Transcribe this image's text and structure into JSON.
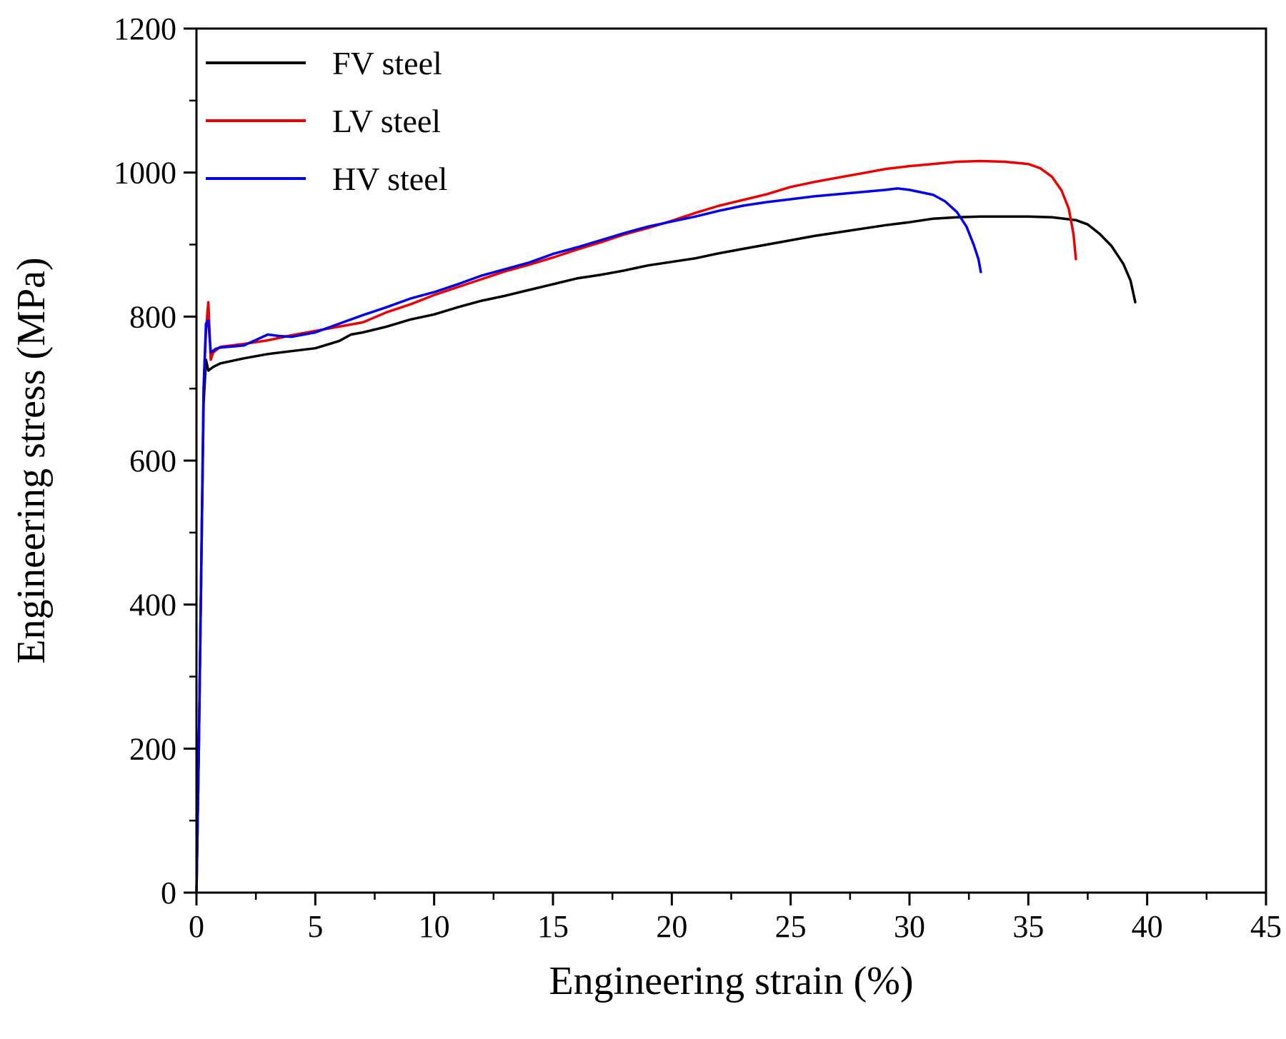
{
  "chart_data": {
    "type": "line",
    "title": "",
    "xlabel": "Engineering strain (%)",
    "ylabel": "Engineering stress (MPa)",
    "xlim": [
      0,
      45
    ],
    "ylim": [
      0,
      1200
    ],
    "x_ticks": [
      0,
      5,
      10,
      15,
      20,
      25,
      30,
      35,
      40,
      45
    ],
    "y_ticks": [
      0,
      200,
      400,
      600,
      800,
      1000,
      1200
    ],
    "x_tick_labels": [
      "0",
      "5",
      "10",
      "15",
      "20",
      "25",
      "30",
      "35",
      "40",
      "45"
    ],
    "y_tick_labels": [
      "0",
      "200",
      "400",
      "600",
      "800",
      "1000",
      "1200"
    ],
    "grid": false,
    "legend_position": "top-left",
    "series": [
      {
        "name": "FV steel",
        "color": "#000000",
        "x": [
          0,
          0.1,
          0.2,
          0.3,
          0.4,
          0.5,
          0.7,
          1.0,
          2.0,
          3.0,
          4.0,
          5.0,
          6.0,
          6.5,
          7.0,
          8.0,
          9.0,
          10.0,
          11.0,
          12.0,
          13.0,
          14.0,
          15.0,
          16.0,
          17.0,
          18.0,
          19.0,
          20.0,
          21.0,
          22.0,
          23.0,
          24.0,
          25.0,
          26.0,
          27.0,
          28.0,
          29.0,
          30.0,
          31.0,
          32.0,
          33.0,
          34.0,
          35.0,
          36.0,
          37.0,
          37.5,
          38.0,
          38.5,
          39.0,
          39.3,
          39.5
        ],
        "values": [
          0,
          200,
          450,
          680,
          740,
          725,
          730,
          735,
          742,
          748,
          752,
          756,
          766,
          775,
          778,
          786,
          796,
          803,
          813,
          822,
          829,
          837,
          845,
          853,
          858,
          864,
          871,
          876,
          881,
          888,
          894,
          900,
          906,
          912,
          917,
          922,
          927,
          931,
          936,
          938,
          939,
          939,
          939,
          938,
          934,
          928,
          915,
          898,
          873,
          850,
          820
        ]
      },
      {
        "name": "LV steel",
        "color": "#ee0000",
        "x": [
          0,
          0.1,
          0.2,
          0.3,
          0.4,
          0.5,
          0.6,
          0.7,
          1.0,
          2.0,
          3.0,
          4.0,
          5.0,
          6.0,
          7.0,
          8.0,
          9.0,
          10.0,
          11.0,
          12.0,
          13.0,
          14.0,
          15.0,
          16.0,
          17.0,
          18.0,
          19.0,
          20.0,
          21.0,
          22.0,
          23.0,
          24.0,
          25.0,
          26.0,
          27.0,
          28.0,
          29.0,
          30.0,
          31.0,
          32.0,
          33.0,
          34.0,
          35.0,
          35.5,
          36.0,
          36.4,
          36.7,
          36.9,
          37.0
        ],
        "values": [
          0,
          200,
          450,
          700,
          780,
          820,
          740,
          750,
          758,
          762,
          767,
          774,
          780,
          786,
          792,
          806,
          817,
          830,
          841,
          852,
          863,
          872,
          882,
          893,
          903,
          914,
          923,
          933,
          944,
          954,
          962,
          970,
          980,
          987,
          993,
          999,
          1005,
          1009,
          1012,
          1015,
          1016,
          1015,
          1012,
          1006,
          994,
          975,
          950,
          915,
          880
        ]
      },
      {
        "name": "HV steel",
        "color": "#0000ee",
        "x": [
          0,
          0.1,
          0.2,
          0.3,
          0.4,
          0.5,
          0.6,
          0.8,
          1.0,
          2.0,
          3.0,
          3.5,
          4.0,
          5.0,
          6.0,
          7.0,
          8.0,
          9.0,
          10.0,
          11.0,
          12.0,
          13.0,
          14.0,
          15.0,
          16.0,
          17.0,
          18.0,
          19.0,
          20.0,
          21.0,
          22.0,
          23.0,
          24.0,
          25.0,
          26.0,
          27.0,
          28.0,
          29.0,
          29.5,
          30.0,
          31.0,
          31.5,
          32.0,
          32.4,
          32.7,
          32.9,
          33.0
        ],
        "values": [
          0,
          200,
          450,
          700,
          790,
          795,
          750,
          755,
          757,
          760,
          775,
          773,
          772,
          778,
          790,
          802,
          813,
          825,
          834,
          845,
          857,
          866,
          875,
          887,
          896,
          906,
          916,
          925,
          932,
          939,
          947,
          954,
          959,
          963,
          967,
          970,
          973,
          976,
          978,
          976,
          969,
          960,
          945,
          925,
          900,
          880,
          862
        ]
      }
    ]
  }
}
